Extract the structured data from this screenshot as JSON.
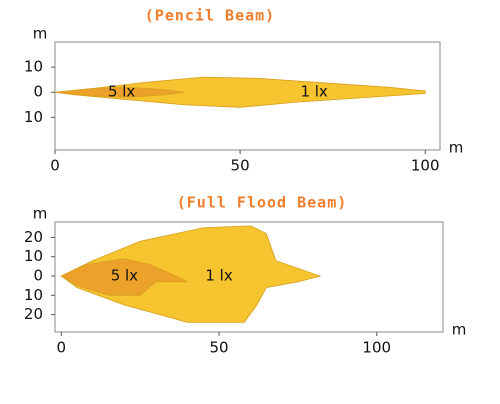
{
  "chart_data": [
    {
      "type": "area",
      "title": "(Pencil Beam)",
      "xlabel": "m",
      "ylabel": "m",
      "xlim": [
        0,
        104
      ],
      "ylim": [
        -23,
        20
      ],
      "xticks": [
        0,
        50,
        100
      ],
      "yticks": [
        10,
        0,
        {
          "value": -10,
          "label": "10"
        }
      ],
      "series": [
        {
          "name": "1 lx",
          "color": "#f5c42f",
          "x": [
            0,
            10,
            25,
            40,
            55,
            70,
            90,
            100,
            100,
            85,
            65,
            50,
            35,
            20,
            5,
            0
          ],
          "y": [
            0,
            1.5,
            4,
            6,
            5.5,
            4,
            2,
            0.5,
            -0.5,
            -2,
            -4,
            -6,
            -5,
            -3,
            -1,
            0
          ]
        },
        {
          "name": "5 lx",
          "color": "#eba12a",
          "x": [
            0,
            10,
            20,
            30,
            35,
            30,
            20,
            10,
            0
          ],
          "y": [
            0,
            1.5,
            2,
            1,
            0,
            -1,
            -2,
            -1.5,
            0
          ]
        }
      ]
    },
    {
      "type": "area",
      "title": "(Full Flood Beam)",
      "xlabel": "m",
      "ylabel": "m",
      "xlim": [
        -2,
        121
      ],
      "ylim": [
        -29,
        28
      ],
      "xticks": [
        0,
        50,
        100
      ],
      "yticks": [
        20,
        10,
        0,
        {
          "value": -10,
          "label": "10"
        },
        {
          "value": -20,
          "label": "20"
        }
      ],
      "series": [
        {
          "name": "1 lx",
          "color": "#f5c42f",
          "x": [
            0,
            10,
            25,
            45,
            60,
            65,
            68,
            75,
            82,
            75,
            65,
            62,
            58,
            40,
            20,
            5,
            0
          ],
          "y": [
            0,
            8,
            18,
            25,
            26,
            22,
            8,
            4,
            0,
            -3,
            -6,
            -15,
            -24,
            -24,
            -15,
            -6,
            0
          ]
        },
        {
          "name": "5 lx",
          "color": "#eba12a",
          "x": [
            0,
            8,
            20,
            28,
            35,
            40,
            30,
            25,
            15,
            5,
            0
          ],
          "y": [
            0,
            6,
            9,
            6,
            1,
            -3,
            -3,
            -10,
            -10,
            -5,
            0
          ]
        }
      ]
    }
  ]
}
